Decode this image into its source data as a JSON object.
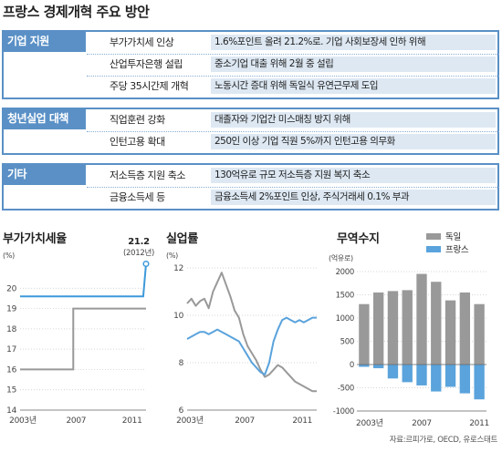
{
  "title": "프랑스 경제개혁 주요 방안",
  "sections": [
    {
      "label": "기업 지원",
      "rows": [
        {
          "key": "부가가치세 인상",
          "value": "1.6%포인트 올려 21.2%로. 기업 사회보장세 인하 위해"
        },
        {
          "key": "산업투자은행 설립",
          "value": "중소기업 대출 위해 2월 중 설립"
        },
        {
          "key": "주당 35시간제 개혁",
          "value": "노동시간 증대 위해 독일식 유연근무제 도입"
        }
      ]
    },
    {
      "label": "청년실업 대책",
      "rows": [
        {
          "key": "직업훈련 강화",
          "value": "대졸자와 기업간 미스매칭 방지 위해"
        },
        {
          "key": "인턴고용 확대",
          "value": "250인 이상 기업 직원 5%까지 인턴고용 의무화"
        }
      ]
    },
    {
      "label": "기타",
      "rows": [
        {
          "key": "저소득층 지원 축소",
          "value": "130억유로 규모 저소득층 지원 복지 축소"
        },
        {
          "key": "금융소득세 등",
          "value": "금융소득세 2%포인트 인상, 주식거래세 0.1% 부과"
        }
      ]
    }
  ],
  "source": "자료:르피가로, OECD, 유로스태트",
  "colors": {
    "accent": "#5a90c6",
    "row_bg": "#dde8f3",
    "germany": "#999999",
    "france": "#5aa3dc",
    "vat_line": "#999999",
    "vat_blue": "#3d99d9"
  },
  "chart_data": [
    {
      "type": "line",
      "title": "부가가치세율",
      "unit": "(%)",
      "xlim": [
        2003,
        2012
      ],
      "ylim": [
        14,
        21
      ],
      "x_ticks": [
        "2003년",
        "2007",
        "2011"
      ],
      "y_ticks": [
        14,
        15,
        16,
        17,
        18,
        19,
        20
      ],
      "annotation": {
        "value": "21.2",
        "note": "(2012년)"
      },
      "series": [
        {
          "color": "vat_line",
          "points": [
            [
              2003,
              16
            ],
            [
              2006.8,
              16
            ],
            [
              2006.8,
              19
            ],
            [
              2012,
              19
            ]
          ]
        },
        {
          "color": "vat_blue",
          "points": [
            [
              2003,
              19.6
            ],
            [
              2011.8,
              19.6
            ],
            [
              2012,
              21.2
            ]
          ]
        }
      ]
    },
    {
      "type": "line",
      "title": "실업률",
      "unit": "(%)",
      "xlim": [
        2003,
        2012
      ],
      "ylim": [
        6,
        12
      ],
      "x_ticks": [
        "2003년",
        "2007",
        "2011"
      ],
      "y_ticks": [
        6,
        8,
        10,
        12
      ],
      "series": [
        {
          "color": "germany",
          "x": [
            2003.0,
            2003.3,
            2003.6,
            2003.9,
            2004.2,
            2004.5,
            2004.8,
            2005.1,
            2005.4,
            2005.7,
            2006.0,
            2006.3,
            2006.6,
            2006.9,
            2007.2,
            2007.5,
            2007.8,
            2008.1,
            2008.4,
            2008.7,
            2009.0,
            2009.3,
            2009.6,
            2009.9,
            2010.2,
            2010.5,
            2010.8,
            2011.1,
            2011.4,
            2011.7,
            2012.0
          ],
          "y": [
            10.5,
            10.7,
            10.4,
            10.6,
            10.7,
            10.3,
            11.0,
            11.4,
            11.8,
            11.3,
            10.8,
            10.2,
            9.9,
            9.2,
            8.7,
            8.4,
            8.1,
            7.7,
            7.4,
            7.5,
            7.7,
            7.9,
            7.8,
            7.6,
            7.4,
            7.2,
            7.1,
            7.0,
            6.9,
            6.8,
            6.8
          ]
        },
        {
          "color": "france",
          "x": [
            2003.0,
            2003.3,
            2003.6,
            2003.9,
            2004.2,
            2004.5,
            2004.8,
            2005.1,
            2005.4,
            2005.7,
            2006.0,
            2006.3,
            2006.6,
            2006.9,
            2007.2,
            2007.5,
            2007.8,
            2008.1,
            2008.4,
            2008.7,
            2009.0,
            2009.3,
            2009.6,
            2009.9,
            2010.2,
            2010.5,
            2010.8,
            2011.1,
            2011.4,
            2011.7,
            2012.0
          ],
          "y": [
            9.0,
            9.1,
            9.2,
            9.3,
            9.3,
            9.2,
            9.3,
            9.4,
            9.3,
            9.2,
            9.1,
            9.0,
            8.9,
            8.6,
            8.3,
            8.0,
            7.8,
            7.6,
            7.5,
            8.0,
            8.9,
            9.4,
            9.8,
            9.9,
            9.8,
            9.7,
            9.8,
            9.7,
            9.8,
            9.9,
            9.9
          ]
        }
      ]
    },
    {
      "type": "bar",
      "title": "무역수지",
      "unit": "(억유로)",
      "legend": [
        "독일",
        "프랑스"
      ],
      "legend_position": "top-right",
      "ylim": [
        -1000,
        2000
      ],
      "x_ticks": [
        "2003년",
        "2007",
        "2011"
      ],
      "y_ticks": [
        2000,
        1500,
        1000,
        500,
        0,
        -500,
        -1000
      ],
      "categories": [
        2003,
        2004,
        2005,
        2006,
        2007,
        2008,
        2009,
        2010,
        2011
      ],
      "series": [
        {
          "name": "독일",
          "color": "germany",
          "values": [
            1300,
            1550,
            1580,
            1600,
            1950,
            1780,
            1380,
            1550,
            1300
          ]
        },
        {
          "name": "프랑스",
          "color": "france",
          "values": [
            -50,
            -80,
            -300,
            -380,
            -450,
            -580,
            -480,
            -620,
            -750
          ]
        }
      ]
    }
  ]
}
